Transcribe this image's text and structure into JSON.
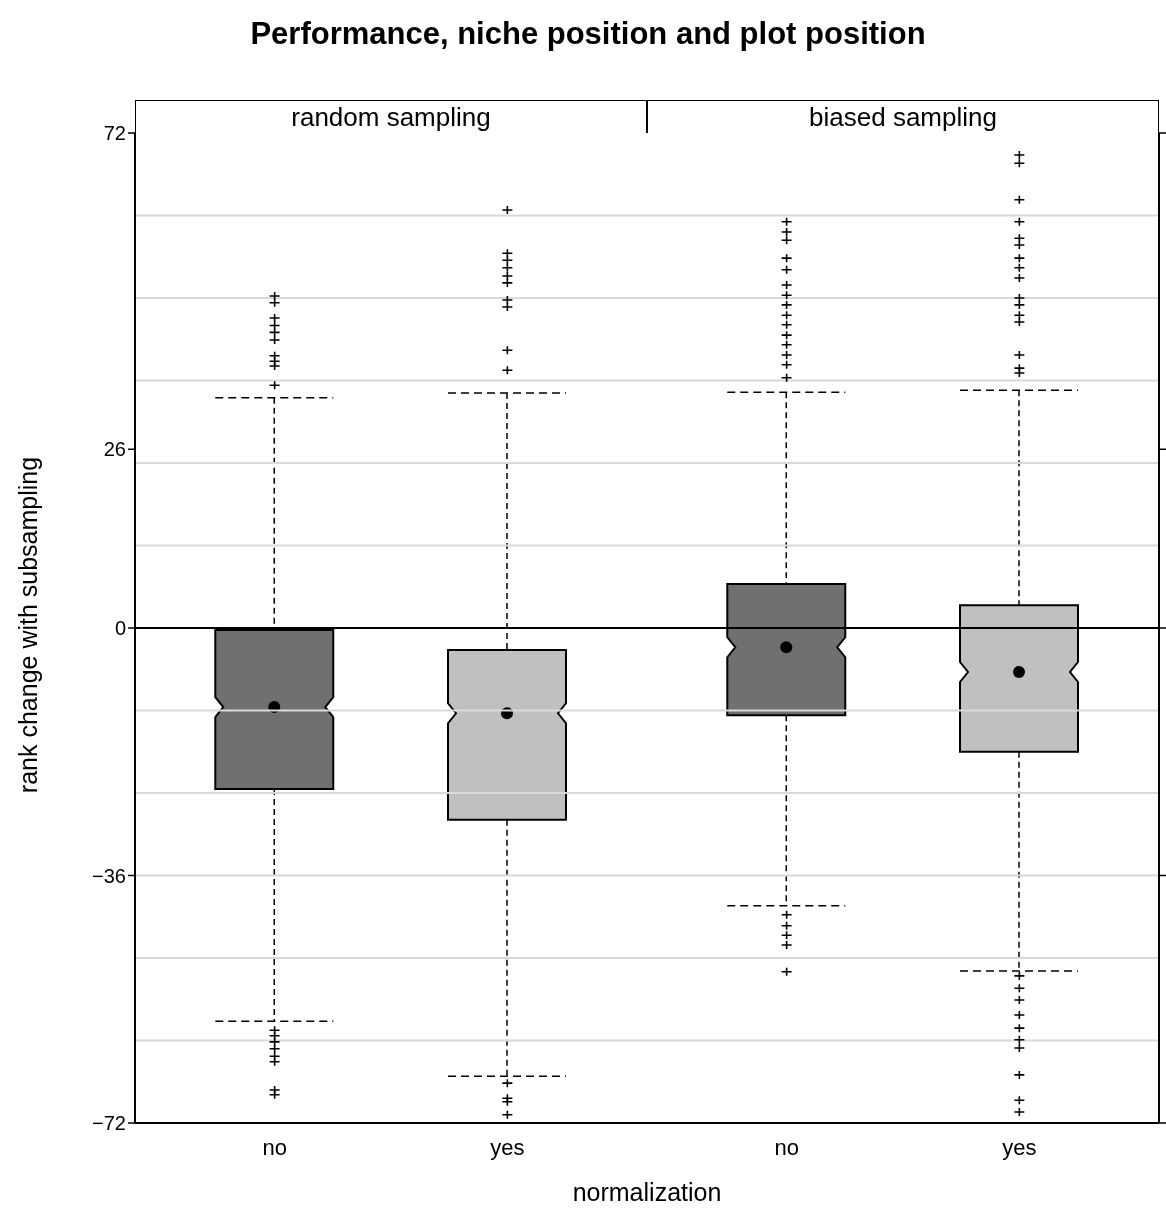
{
  "chart_data": [
    {
      "type": "box",
      "title": "Performance, niche position and plot position",
      "subtitle": "random sampling",
      "xlabel": "normalization",
      "ylabel": "rank change with subsampling",
      "categories": [
        "no",
        "yes"
      ],
      "colors": [
        "#707070",
        "#c0c0c0"
      ],
      "boxes": [
        {
          "low": -57.2,
          "q1": -23.4,
          "median": -11.5,
          "q3": -0.3,
          "high": 33.5,
          "outliers": [
            48.3,
            47.3,
            45.1,
            44,
            43,
            41.9,
            39.6,
            38.8,
            38.1,
            35.3,
            -58.5,
            -59.3,
            -60.2,
            -61.2,
            -62.3,
            -63.1,
            -67.2,
            -67.9
          ]
        },
        {
          "low": -65.2,
          "q1": -27.9,
          "median": -12.4,
          "q3": -3.2,
          "high": 34.2,
          "outliers": [
            60.8,
            54.5,
            53.5,
            52.4,
            51.2,
            50.2,
            47.7,
            46.7,
            40.4,
            37.5,
            -66.2,
            -68.4,
            -68.9,
            -70.8
          ]
        }
      ],
      "ylim": [
        -72,
        72
      ],
      "yticks": [
        -72,
        -36,
        0,
        26,
        72
      ],
      "grid": false,
      "ref_lines": [
        {
          "axis": "y",
          "value": 0,
          "color": "#000000"
        },
        {
          "axis": "y",
          "value": 60,
          "color": "#d9d9d9"
        },
        {
          "axis": "y",
          "value": 48,
          "color": "#d9d9d9"
        },
        {
          "axis": "y",
          "value": 36,
          "color": "#d9d9d9"
        },
        {
          "axis": "y",
          "value": 24,
          "color": "#d9d9d9"
        },
        {
          "axis": "y",
          "value": 12,
          "color": "#d9d9d9"
        },
        {
          "axis": "y",
          "value": -12,
          "color": "#d9d9d9"
        },
        {
          "axis": "y",
          "value": -24,
          "color": "#d9d9d9"
        },
        {
          "axis": "y",
          "value": -36,
          "color": "#d9d9d9"
        },
        {
          "axis": "y",
          "value": -48,
          "color": "#d9d9d9"
        },
        {
          "axis": "y",
          "value": -60,
          "color": "#d9d9d9"
        }
      ]
    },
    {
      "type": "box",
      "subtitle": "biased sampling",
      "categories": [
        "no",
        "yes"
      ],
      "colors": [
        "#707070",
        "#c0c0c0"
      ],
      "boxes": [
        {
          "low": -40.4,
          "q1": -12.7,
          "median": -2.8,
          "q3": 6.4,
          "high": 34.3,
          "outliers": [
            59.1,
            57.6,
            56.4,
            53.8,
            52.1,
            49.9,
            48.4,
            47,
            45.5,
            44.1,
            42.6,
            41.2,
            39.7,
            38.3,
            36.4,
            -41.7,
            -43.3,
            -44.7,
            -46.1,
            -50
          ]
        },
        {
          "low": -49.9,
          "q1": -18,
          "median": -6.4,
          "q3": 3.3,
          "high": 34.6,
          "outliers": [
            68.8,
            67.6,
            62.3,
            59.1,
            56.7,
            55.7,
            53.8,
            52.4,
            50.9,
            48,
            47,
            45.5,
            44.5,
            39.7,
            37.8,
            37.1,
            -50.6,
            -52.4,
            -54.1,
            -56.3,
            -58.2,
            -59.9,
            -61.1,
            -65,
            -68.7,
            -70.4
          ]
        }
      ],
      "ylim": [
        -72,
        72
      ],
      "yticks": [
        -72,
        -36,
        0,
        26,
        72
      ],
      "grid": false,
      "tick_labels": "x",
      "ref_lines": [
        {
          "axis": "y",
          "value": 0,
          "color": "#000000"
        },
        {
          "axis": "y",
          "value": 60,
          "color": "#d9d9d9"
        },
        {
          "axis": "y",
          "value": 48,
          "color": "#d9d9d9"
        },
        {
          "axis": "y",
          "value": 36,
          "color": "#d9d9d9"
        },
        {
          "axis": "y",
          "value": 24,
          "color": "#d9d9d9"
        },
        {
          "axis": "y",
          "value": 12,
          "color": "#d9d9d9"
        },
        {
          "axis": "y",
          "value": -12,
          "color": "#d9d9d9"
        },
        {
          "axis": "y",
          "value": -24,
          "color": "#d9d9d9"
        },
        {
          "axis": "y",
          "value": -36,
          "color": "#d9d9d9"
        },
        {
          "axis": "y",
          "value": -48,
          "color": "#d9d9d9"
        },
        {
          "axis": "y",
          "value": -60,
          "color": "#d9d9d9"
        }
      ]
    }
  ]
}
